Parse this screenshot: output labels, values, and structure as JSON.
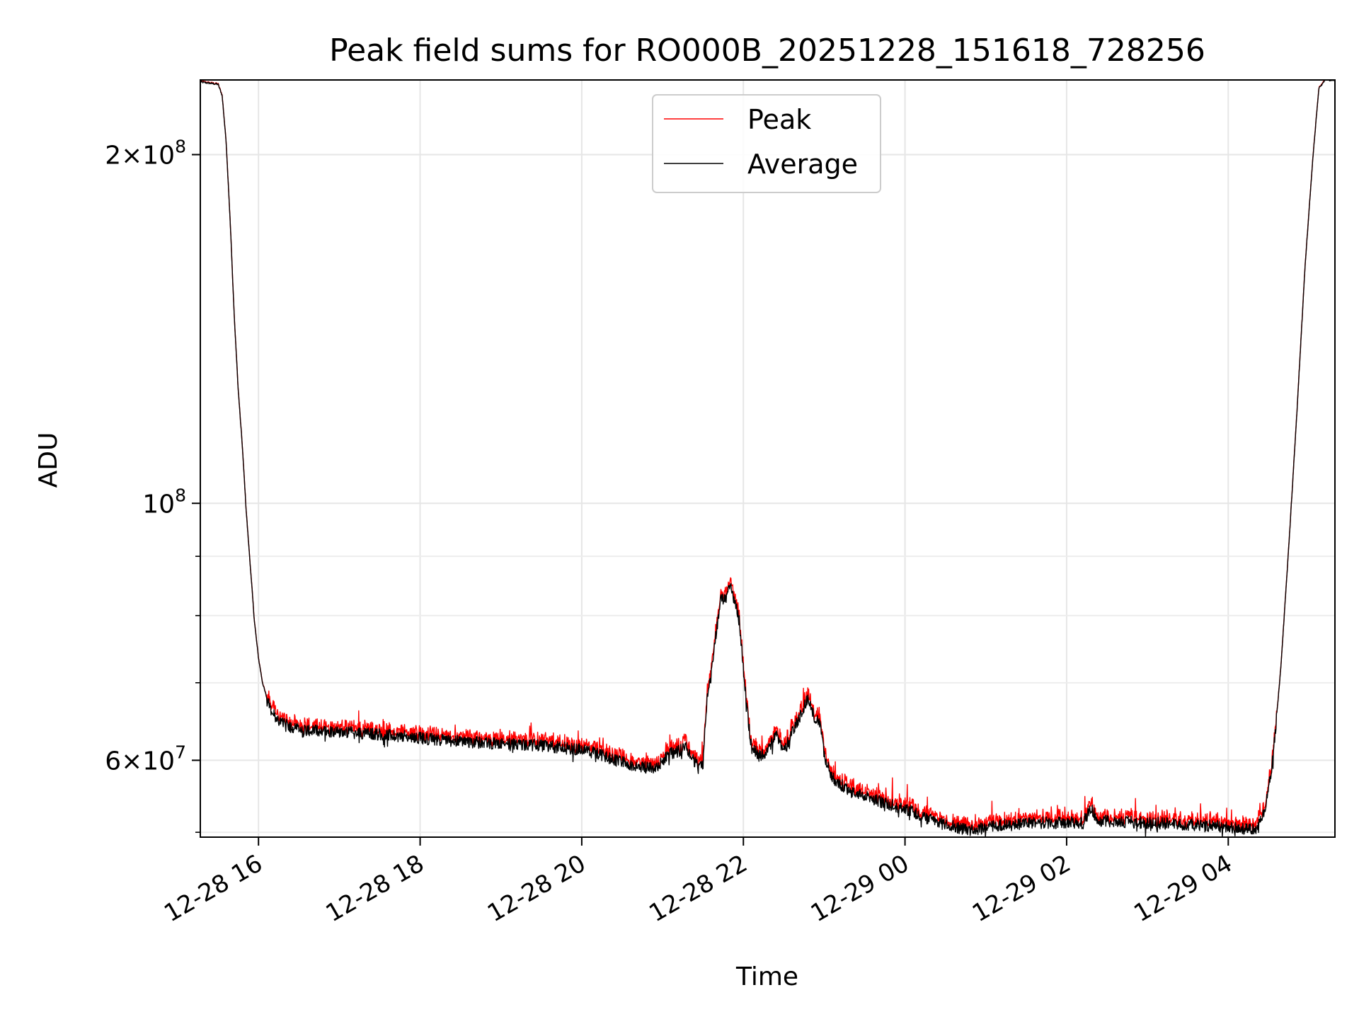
{
  "chart_data": {
    "type": "line",
    "title": "Peak field sums for RO000B_20251228_151618_728256",
    "xlabel": "Time",
    "ylabel": "ADU",
    "y_scale": "log",
    "ylim": [
      51500000,
      232000000
    ],
    "xlim_hours": [
      15.28,
      29.32
    ],
    "grid": true,
    "legend_location": "upper center",
    "x_ticks": [
      {
        "hour": 16,
        "label": "12-28 16"
      },
      {
        "hour": 18,
        "label": "12-28 18"
      },
      {
        "hour": 20,
        "label": "12-28 20"
      },
      {
        "hour": 22,
        "label": "12-28 22"
      },
      {
        "hour": 24,
        "label": "12-29 00"
      },
      {
        "hour": 26,
        "label": "12-29 02"
      },
      {
        "hour": 28,
        "label": "12-29 04"
      }
    ],
    "y_major_ticks": [
      {
        "value": 60000000,
        "mantissa": "6",
        "exponent": "7"
      },
      {
        "value": 100000000,
        "mantissa": "",
        "exponent": "8"
      },
      {
        "value": 200000000,
        "mantissa": "2",
        "exponent": "8"
      }
    ],
    "y_minor_ticks": [
      52000000,
      70000000,
      80000000,
      90000000
    ],
    "series": [
      {
        "name": "Peak",
        "color": "#ff0000"
      },
      {
        "name": "Average",
        "color": "#000000"
      }
    ],
    "average_key_points": [
      [
        15.3,
        231000000
      ],
      [
        15.5,
        230000000
      ],
      [
        15.55,
        225000000
      ],
      [
        15.6,
        205000000
      ],
      [
        15.65,
        175000000
      ],
      [
        15.7,
        145000000
      ],
      [
        15.75,
        125000000
      ],
      [
        15.8,
        112000000
      ],
      [
        15.85,
        98000000
      ],
      [
        15.9,
        88000000
      ],
      [
        15.95,
        79000000
      ],
      [
        16.0,
        73500000
      ],
      [
        16.05,
        70000000
      ],
      [
        16.1,
        68000000
      ],
      [
        16.15,
        66500000
      ],
      [
        16.2,
        65500000
      ],
      [
        16.3,
        64500000
      ],
      [
        16.5,
        63800000
      ],
      [
        17.0,
        63500000
      ],
      [
        17.5,
        63200000
      ],
      [
        18.0,
        62700000
      ],
      [
        18.5,
        62300000
      ],
      [
        19.0,
        62000000
      ],
      [
        19.5,
        61800000
      ],
      [
        20.0,
        61300000
      ],
      [
        20.2,
        60800000
      ],
      [
        20.4,
        60000000
      ],
      [
        20.6,
        59500000
      ],
      [
        20.9,
        59000000
      ],
      [
        21.1,
        60800000
      ],
      [
        21.3,
        61500000
      ],
      [
        21.45,
        59000000
      ],
      [
        21.5,
        59500000
      ],
      [
        21.55,
        68000000
      ],
      [
        21.6,
        71000000
      ],
      [
        21.65,
        76000000
      ],
      [
        21.72,
        83000000
      ],
      [
        21.78,
        82500000
      ],
      [
        21.83,
        85000000
      ],
      [
        21.88,
        83000000
      ],
      [
        21.95,
        79000000
      ],
      [
        22.0,
        72000000
      ],
      [
        22.05,
        66000000
      ],
      [
        22.1,
        61500000
      ],
      [
        22.2,
        60500000
      ],
      [
        22.3,
        61000000
      ],
      [
        22.4,
        63500000
      ],
      [
        22.5,
        61000000
      ],
      [
        22.6,
        63500000
      ],
      [
        22.7,
        65500000
      ],
      [
        22.8,
        68000000
      ],
      [
        22.85,
        66000000
      ],
      [
        22.9,
        65000000
      ],
      [
        22.95,
        64500000
      ],
      [
        23.0,
        60500000
      ],
      [
        23.1,
        58000000
      ],
      [
        23.3,
        56500000
      ],
      [
        23.6,
        55500000
      ],
      [
        24.0,
        54500000
      ],
      [
        24.4,
        53000000
      ],
      [
        24.8,
        52200000
      ],
      [
        25.2,
        52800000
      ],
      [
        25.6,
        53000000
      ],
      [
        26.0,
        53000000
      ],
      [
        26.2,
        53000000
      ],
      [
        26.3,
        54500000
      ],
      [
        26.4,
        53200000
      ],
      [
        27.0,
        53000000
      ],
      [
        27.5,
        52800000
      ],
      [
        28.0,
        52600000
      ],
      [
        28.2,
        52300000
      ],
      [
        28.35,
        52500000
      ],
      [
        28.45,
        54000000
      ],
      [
        28.55,
        60000000
      ],
      [
        28.65,
        72000000
      ],
      [
        28.75,
        92000000
      ],
      [
        28.85,
        120000000
      ],
      [
        28.95,
        160000000
      ],
      [
        29.05,
        200000000
      ],
      [
        29.12,
        228000000
      ],
      [
        29.2,
        232000000
      ],
      [
        29.32,
        232000000
      ]
    ]
  }
}
